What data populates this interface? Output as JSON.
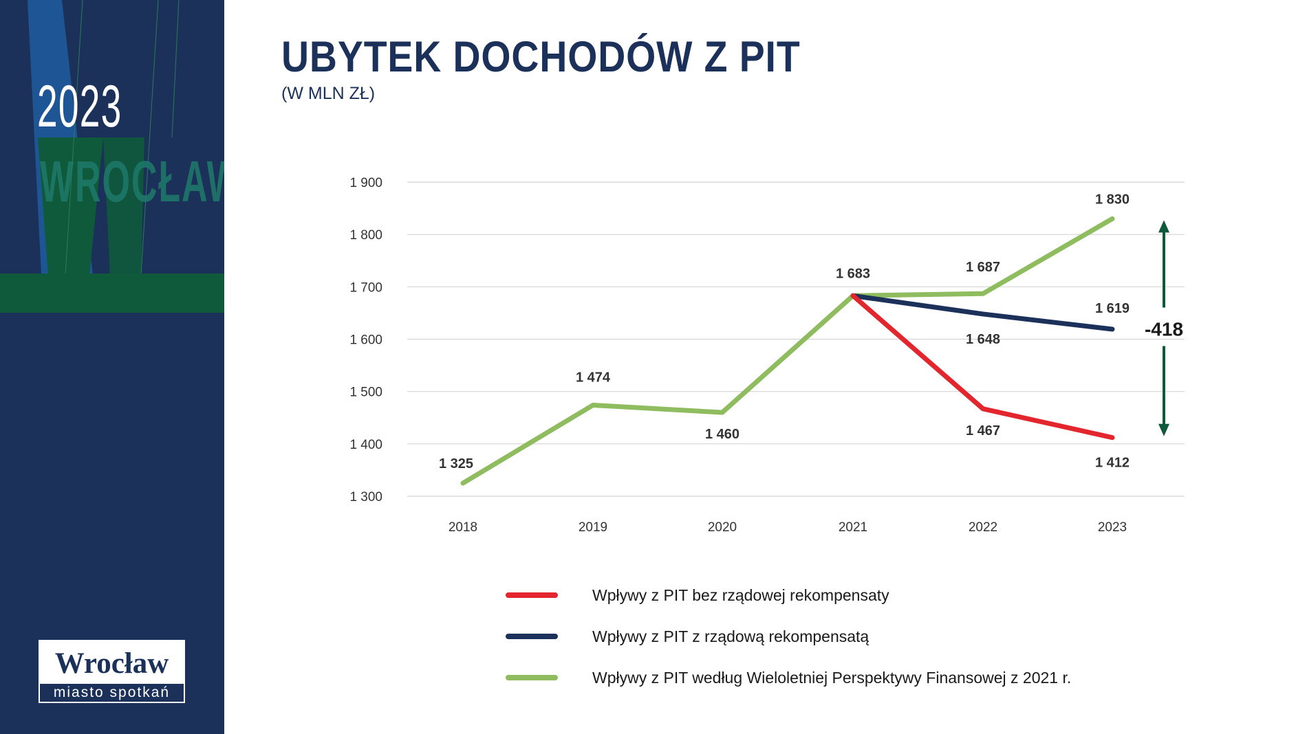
{
  "sidebar": {
    "year": "2023",
    "city": "WROCŁAW",
    "logo": {
      "name": "Wrocław",
      "tagline": "miasto spotkań"
    },
    "colors": {
      "background": "#1b3159",
      "accent_green": "#0f5a3a",
      "teal_text": "#1e7a6a"
    }
  },
  "header": {
    "title": "UBYTEK DOCHODÓW Z PIT",
    "subtitle": "(W MLN ZŁ)"
  },
  "chart_data": {
    "type": "line",
    "x": [
      "2018",
      "2019",
      "2020",
      "2021",
      "2022",
      "2023"
    ],
    "ylim": [
      1300,
      1900
    ],
    "yticks": [
      1300,
      1400,
      1500,
      1600,
      1700,
      1800,
      1900
    ],
    "ytick_labels": [
      "1 300",
      "1 400",
      "1 500",
      "1 600",
      "1 700",
      "1 800",
      "1 900"
    ],
    "grid": true,
    "legend_position": "bottom",
    "series": [
      {
        "name": "Wpływy z PIT według Wieloletniej Perspektywy Finansowej z 2021 r.",
        "color": "#8fbc5e",
        "values": [
          1325,
          1474,
          1460,
          1683,
          1687,
          1830
        ],
        "labels": [
          "1 325",
          "1 474",
          "1 460",
          "1 683",
          "1 687",
          "1 830"
        ]
      },
      {
        "name": "Wpływy z PIT z rządową rekompensatą",
        "color": "#1b3159",
        "values": [
          null,
          null,
          null,
          1683,
          1648,
          1619
        ],
        "labels": [
          null,
          null,
          null,
          null,
          "1 648",
          "1 619"
        ]
      },
      {
        "name": "Wpływy z PIT bez rządowej rekompensaty",
        "color": "#e3262e",
        "values": [
          null,
          null,
          null,
          1683,
          1467,
          1412
        ],
        "labels": [
          null,
          null,
          null,
          null,
          "1 467",
          "1 412"
        ]
      }
    ],
    "legend_order": [
      2,
      1,
      0
    ],
    "annotation": {
      "text": "-418",
      "x": "2023",
      "from": 1830,
      "to": 1412,
      "color": "#0f5a3a"
    }
  }
}
